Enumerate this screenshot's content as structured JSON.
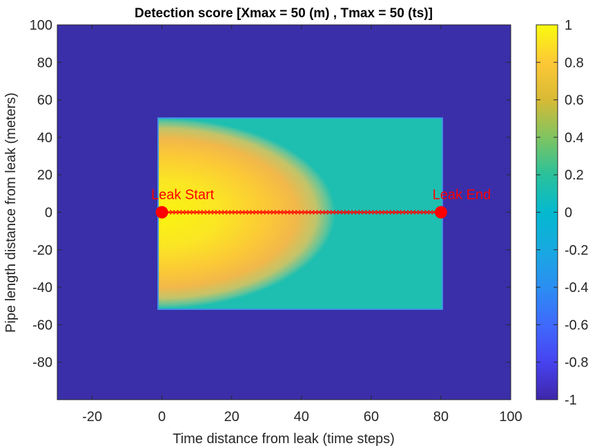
{
  "chart_data": {
    "type": "heatmap",
    "title": "Detection score [Xmax = 50 (m) , Tmax = 50 (ts)]",
    "xlabel": "Time distance from leak (time steps)",
    "ylabel": "Pipe length distance from leak (meters)",
    "xlim": [
      -30,
      100
    ],
    "ylim": [
      -100,
      100
    ],
    "xticks": [
      -20,
      0,
      20,
      40,
      60,
      80,
      100
    ],
    "yticks": [
      100,
      80,
      60,
      40,
      20,
      0,
      -20,
      -40,
      -60,
      -80
    ],
    "colorbar": {
      "limits": [
        -1,
        1
      ],
      "ticks": [
        1,
        0.8,
        0.6,
        0.4,
        0.2,
        0,
        -0.2,
        -0.4,
        -0.6,
        -0.8,
        -1
      ],
      "colormap": "parula"
    },
    "regions": {
      "background_value": -1,
      "rectangle": {
        "x": [
          0,
          80
        ],
        "y": [
          -50,
          50
        ],
        "value": 0.1
      },
      "detection_lobe": {
        "x_extent": 50,
        "y_extent": 50,
        "peak_value": 1,
        "peak_at": [
          0,
          0
        ]
      }
    },
    "leak_line": {
      "x": [
        0,
        80
      ],
      "y": 0
    },
    "annotations": [
      {
        "label": "Leak Start",
        "x": 0,
        "y": 0
      },
      {
        "label": "Leak End",
        "x": 80,
        "y": 0
      }
    ],
    "colors": {
      "background": "#3a2fa8",
      "rectangle": "#1ebfb0",
      "peak": "#f9f50e",
      "marker": "#ff0000"
    }
  }
}
